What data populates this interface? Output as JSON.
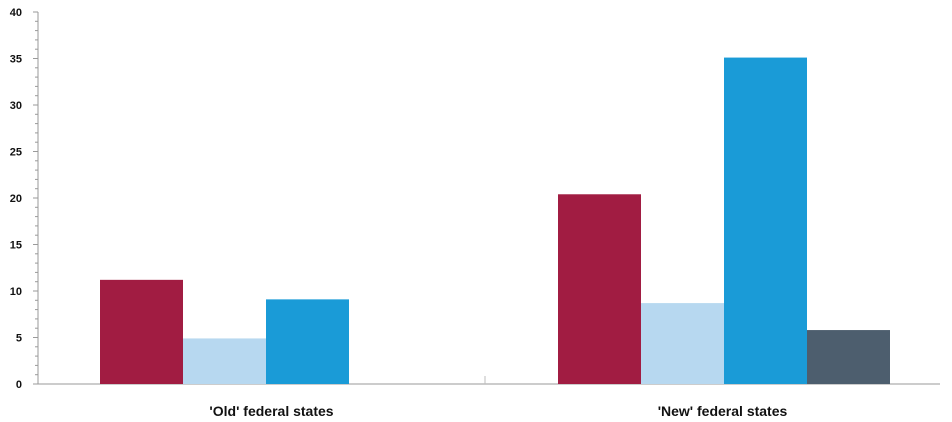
{
  "chart_data": {
    "type": "bar",
    "categories": [
      "'Old' federal states",
      "'New' federal states"
    ],
    "series": [
      {
        "values": [
          11.2,
          20.4
        ]
      },
      {
        "values": [
          4.9,
          8.7
        ]
      },
      {
        "values": [
          9.1,
          35.1
        ]
      },
      {
        "values": [
          null,
          5.8
        ]
      }
    ],
    "colors": [
      "#a11c42",
      "#b7d8f0",
      "#1a9bd7",
      "#4d5e6e"
    ],
    "ylim": [
      0,
      40
    ],
    "yticks": [
      0,
      5,
      10,
      15,
      20,
      25,
      30,
      35,
      40
    ],
    "xlabel": "",
    "ylabel": "",
    "title": "",
    "grid": false,
    "legend": "none"
  }
}
